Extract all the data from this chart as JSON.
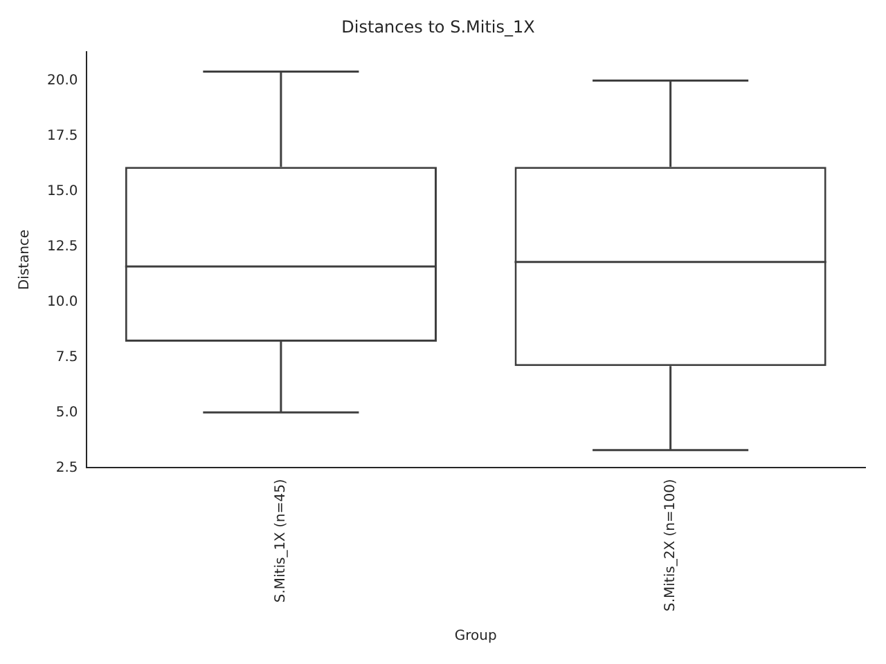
{
  "chart_data": {
    "type": "box",
    "title": "Distances to S.Mitis_1X",
    "xlabel": "Group",
    "ylabel": "Distance",
    "categories": [
      "S.Mitis_1X (n=45)",
      "S.Mitis_2X (n=100)"
    ],
    "boxes": [
      {
        "low": 5.0,
        "q1": 8.2,
        "median": 11.6,
        "q3": 16.1,
        "high": 20.4
      },
      {
        "low": 3.3,
        "q1": 7.1,
        "median": 11.8,
        "q3": 16.1,
        "high": 20.0
      }
    ],
    "ylim": [
      2.5,
      21.3
    ],
    "yticks": [
      2.5,
      {
        "value": 5,
        "label": "5.0"
      },
      7.5,
      {
        "value": 10,
        "label": "10.0"
      },
      12.5,
      {
        "value": 15,
        "label": "15.0"
      },
      17.5,
      {
        "value": 20,
        "label": "20.0"
      }
    ],
    "grid": false,
    "legend": false
  }
}
